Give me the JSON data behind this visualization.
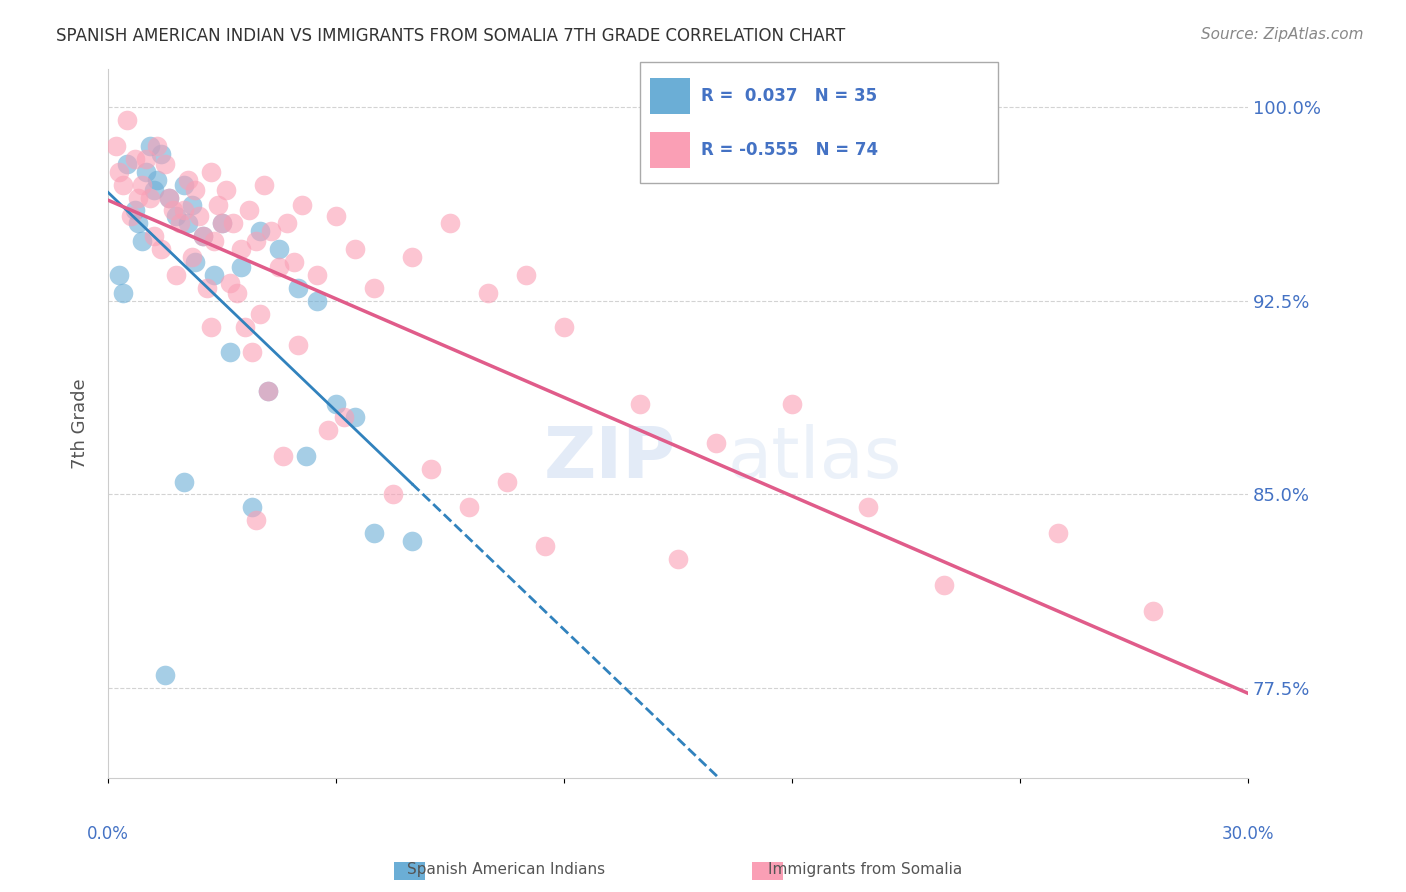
{
  "title": "SPANISH AMERICAN INDIAN VS IMMIGRANTS FROM SOMALIA 7TH GRADE CORRELATION CHART",
  "source": "Source: ZipAtlas.com",
  "ylabel": "7th Grade",
  "xmin": 0.0,
  "xmax": 30.0,
  "ymin": 74.0,
  "ymax": 101.5,
  "color_blue": "#6baed6",
  "color_pink": "#fa9fb5",
  "color_blue_line": "#3182bd",
  "color_pink_line": "#e05c8a",
  "color_axis": "#4472c4",
  "blue_scatter_x": [
    0.4,
    0.8,
    1.0,
    1.2,
    1.4,
    1.6,
    1.8,
    2.0,
    2.2,
    2.5,
    2.8,
    3.0,
    3.5,
    4.0,
    4.5,
    5.0,
    5.5,
    6.0,
    7.0,
    8.0,
    0.3,
    0.5,
    0.7,
    0.9,
    1.1,
    1.3,
    2.1,
    2.3,
    3.2,
    4.2,
    5.2,
    6.5,
    2.0,
    3.8,
    1.5
  ],
  "blue_scatter_y": [
    92.8,
    95.5,
    97.5,
    96.8,
    98.2,
    96.5,
    95.8,
    97.0,
    96.2,
    95.0,
    93.5,
    95.5,
    93.8,
    95.2,
    94.5,
    93.0,
    92.5,
    88.5,
    83.5,
    83.2,
    93.5,
    97.8,
    96.0,
    94.8,
    98.5,
    97.2,
    95.5,
    94.0,
    90.5,
    89.0,
    86.5,
    88.0,
    85.5,
    84.5,
    78.0
  ],
  "pink_scatter_x": [
    0.3,
    0.5,
    0.7,
    0.9,
    1.1,
    1.3,
    1.5,
    1.7,
    1.9,
    2.1,
    2.3,
    2.5,
    2.7,
    2.9,
    3.1,
    3.3,
    3.5,
    3.7,
    3.9,
    4.1,
    4.3,
    4.5,
    4.7,
    4.9,
    5.1,
    5.5,
    6.0,
    6.5,
    7.0,
    8.0,
    9.0,
    10.0,
    11.0,
    12.0,
    14.0,
    16.0,
    18.0,
    20.0,
    25.0,
    0.2,
    0.4,
    0.6,
    0.8,
    1.0,
    1.2,
    1.4,
    1.6,
    1.8,
    2.0,
    2.2,
    2.4,
    2.6,
    2.8,
    3.0,
    3.2,
    3.4,
    3.6,
    3.8,
    4.0,
    4.2,
    5.0,
    5.8,
    7.5,
    9.5,
    11.5,
    6.2,
    4.6,
    3.9,
    2.7,
    8.5,
    10.5,
    15.0,
    22.0,
    27.5
  ],
  "pink_scatter_y": [
    97.5,
    99.5,
    98.0,
    97.0,
    96.5,
    98.5,
    97.8,
    96.0,
    95.5,
    97.2,
    96.8,
    95.0,
    97.5,
    96.2,
    96.8,
    95.5,
    94.5,
    96.0,
    94.8,
    97.0,
    95.2,
    93.8,
    95.5,
    94.0,
    96.2,
    93.5,
    95.8,
    94.5,
    93.0,
    94.2,
    95.5,
    92.8,
    93.5,
    91.5,
    88.5,
    87.0,
    88.5,
    84.5,
    83.5,
    98.5,
    97.0,
    95.8,
    96.5,
    98.0,
    95.0,
    94.5,
    96.5,
    93.5,
    96.0,
    94.2,
    95.8,
    93.0,
    94.8,
    95.5,
    93.2,
    92.8,
    91.5,
    90.5,
    92.0,
    89.0,
    90.8,
    87.5,
    85.0,
    84.5,
    83.0,
    88.0,
    86.5,
    84.0,
    91.5,
    86.0,
    85.5,
    82.5,
    81.5,
    80.5
  ],
  "ytick_vals": [
    77.5,
    85.0,
    92.5,
    100.0
  ],
  "ytick_labels": [
    "77.5%",
    "85.0%",
    "92.5%",
    "100.0%"
  ],
  "legend_line1": "R =  0.037   N = 35",
  "legend_line2": "R = -0.555   N = 74",
  "bottom_label1": "Spanish American Indians",
  "bottom_label2": "Immigrants from Somalia",
  "watermark_zip": "ZIP",
  "watermark_atlas": "atlas"
}
